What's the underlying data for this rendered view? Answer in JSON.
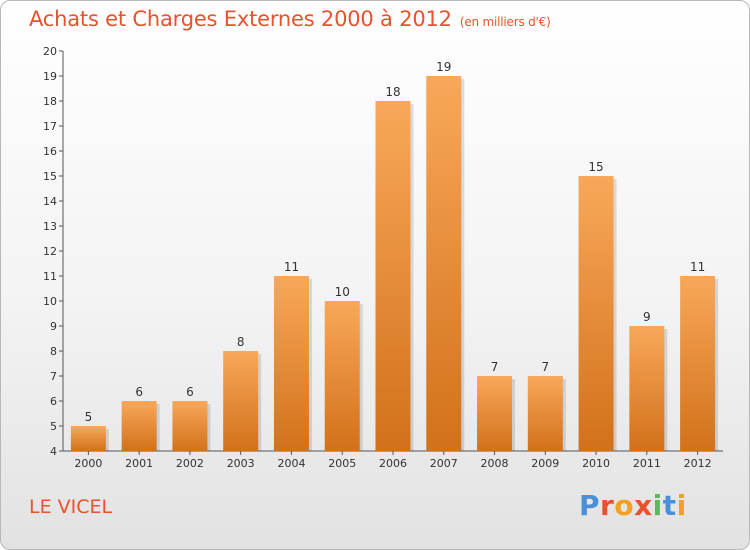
{
  "header": {
    "title": "Achats et Charges Externes 2000 à 2012",
    "subtitle": "(en milliers d'€)"
  },
  "footer": {
    "place": "LE VICEL",
    "logo_letters": [
      "P",
      "r",
      "o",
      "x",
      "i",
      "t",
      "i"
    ],
    "logo_colors": [
      "#4a90d9",
      "#e8522e",
      "#f4a020",
      "#e8522e",
      "#5cb85c",
      "#4a90d9",
      "#f4a020"
    ]
  },
  "colors": {
    "bar_light": "#f8a85a",
    "bar_dark": "#d2711a",
    "accent": "#e8522e"
  },
  "chart_data": {
    "type": "bar",
    "title": "Achats et Charges Externes 2000 à 2012",
    "subtitle": "(en milliers d'€)",
    "categories": [
      "2000",
      "2001",
      "2002",
      "2003",
      "2004",
      "2005",
      "2006",
      "2007",
      "2008",
      "2009",
      "2010",
      "2011",
      "2012"
    ],
    "values": [
      5,
      6,
      6,
      8,
      11,
      10,
      18,
      19,
      7,
      7,
      15,
      9,
      11
    ],
    "ylim": [
      4,
      20
    ],
    "yticks": [
      4,
      5,
      6,
      7,
      8,
      9,
      10,
      11,
      12,
      13,
      14,
      15,
      16,
      17,
      18,
      19,
      20
    ],
    "grid": false,
    "legend": "none"
  }
}
